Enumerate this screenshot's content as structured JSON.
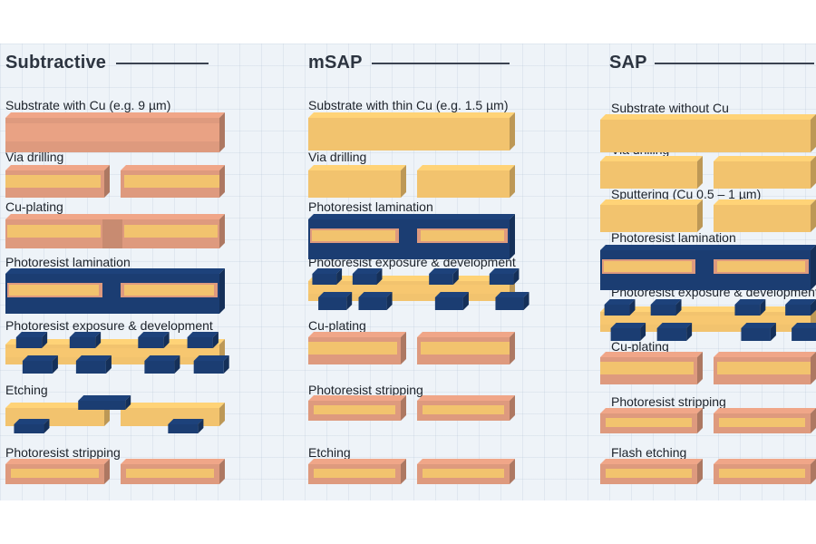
{
  "columns": [
    {
      "title": "Subtractive",
      "steps": [
        "Substrate with Cu (e.g. 9 µm)",
        "Via drilling",
        "Cu-plating",
        "Photoresist lamination",
        "Photoresist exposure & development",
        "Etching",
        "Photoresist stripping"
      ]
    },
    {
      "title": "mSAP",
      "steps": [
        "Substrate with thin Cu (e.g. 1.5 µm)",
        "Via drilling",
        "Photoresist lamination",
        "Photoresist exposure & development",
        "Cu-plating",
        "Photoresist stripping",
        "Etching"
      ]
    },
    {
      "title": "SAP",
      "steps": [
        "Substrate without Cu",
        "Via drilling",
        "Sputtering (Cu 0.5 – 1 µm)",
        "Photoresist lamination",
        "Photoresist exposure & development",
        "Cu-plating",
        "Photoresist stripping",
        "Flash etching"
      ]
    }
  ],
  "colors": {
    "substrate": "#f2c36e",
    "copper": "#de9a7e",
    "photoresist": "#1b3d72",
    "background": "#eef3f8"
  }
}
